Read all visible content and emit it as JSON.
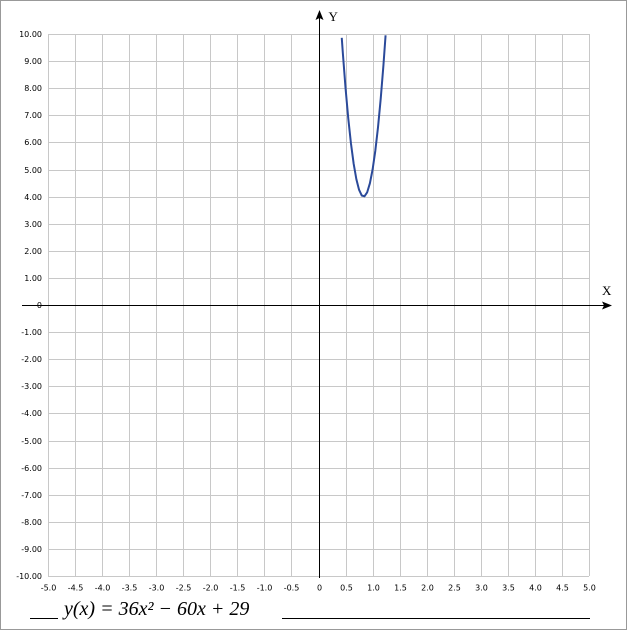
{
  "chart_data": {
    "type": "line",
    "xlabel": "X",
    "ylabel": "Y",
    "formula": "y(x) = 36x² − 60x + 29",
    "x": [
      0.43,
      0.45,
      0.5,
      0.55,
      0.6,
      0.65,
      0.7,
      0.75,
      0.8,
      0.85,
      0.9,
      0.95,
      1.0,
      1.05,
      1.1,
      1.15,
      1.2,
      1.24
    ],
    "values": [
      9.86,
      9.29,
      8,
      6.89,
      5.96,
      5.21,
      4.64,
      4.25,
      4.04,
      4.01,
      4.16,
      4.49,
      5,
      5.69,
      6.56,
      7.61,
      8.84,
      9.95
    ],
    "color": "#2b4a9a",
    "xlim": [
      -5,
      5
    ],
    "ylim": [
      -10,
      10
    ],
    "grid": true,
    "xticks": [
      {
        "value": -5,
        "label": "-5.0"
      },
      {
        "value": -4.5,
        "label": "-4.5"
      },
      {
        "value": -4,
        "label": "-4.0"
      },
      {
        "value": -3.5,
        "label": "-3.5"
      },
      {
        "value": -3,
        "label": "-3.0"
      },
      {
        "value": -2.5,
        "label": "-2.5"
      },
      {
        "value": -2,
        "label": "-2.0"
      },
      {
        "value": -1.5,
        "label": "-1.5"
      },
      {
        "value": -1,
        "label": "-1.0"
      },
      {
        "value": -0.5,
        "label": "-0.5"
      },
      0,
      0.5,
      {
        "value": 1,
        "label": "1.0"
      },
      1.5,
      {
        "value": 2,
        "label": "2.0"
      },
      2.5,
      {
        "value": 3,
        "label": "3.0"
      },
      3.5,
      {
        "value": 4,
        "label": "4.0"
      },
      4.5,
      {
        "value": 5,
        "label": "5.0"
      }
    ],
    "yticks": [
      {
        "value": 10,
        "label": "10.00"
      },
      {
        "value": 9,
        "label": "9.00"
      },
      {
        "value": 8,
        "label": "8.00"
      },
      {
        "value": 7,
        "label": "7.00"
      },
      {
        "value": 6,
        "label": "6.00"
      },
      {
        "value": 5,
        "label": "5.00"
      },
      {
        "value": 4,
        "label": "4.00"
      },
      {
        "value": 3,
        "label": "3.00"
      },
      {
        "value": 2,
        "label": "2.00"
      },
      {
        "value": 1,
        "label": "1.00"
      },
      0,
      {
        "value": -1,
        "label": "-1.00"
      },
      {
        "value": -2,
        "label": "-2.00"
      },
      {
        "value": -3,
        "label": "-3.00"
      },
      {
        "value": -4,
        "label": "-4.00"
      },
      {
        "value": -5,
        "label": "-5.00"
      },
      {
        "value": -6,
        "label": "-6.00"
      },
      {
        "value": -7,
        "label": "-7.00"
      },
      {
        "value": -8,
        "label": "-8.00"
      },
      {
        "value": -9,
        "label": "-9.00"
      },
      {
        "value": -10,
        "label": "-10.00"
      }
    ]
  }
}
